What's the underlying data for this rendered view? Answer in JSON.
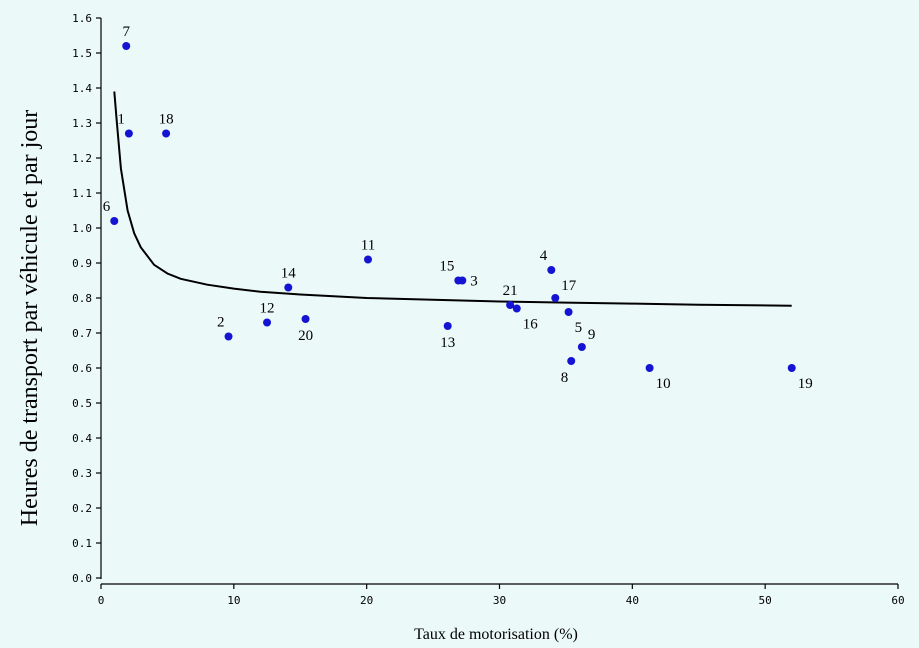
{
  "colors": {
    "background": "#ebfaf8",
    "point": "#1414d2",
    "curve": "#000000",
    "axis": "#000000"
  },
  "chart_data": {
    "type": "scatter",
    "title": "",
    "xlabel": "Taux de motorisation (%)",
    "ylabel": "Heures de transport par véhicule et par jour",
    "xlim": [
      0,
      60
    ],
    "ylim": [
      0,
      1.6
    ],
    "x_ticks": [
      0,
      10,
      20,
      30,
      40,
      50,
      60
    ],
    "x_tick_labels": [
      "0",
      "10",
      "20",
      "30",
      "40",
      "50",
      "60"
    ],
    "y_ticks": [
      0,
      0.1,
      0.2,
      0.3,
      0.4,
      0.5,
      0.6,
      0.7,
      0.8,
      0.9,
      1.0,
      1.1,
      1.2,
      1.3,
      1.4,
      1.5,
      1.6
    ],
    "y_tick_labels": [
      "0.0",
      "0.1",
      "0.2",
      "0.3",
      "0.4",
      "0.5",
      "0.6",
      "0.7",
      "0.8",
      "0.9",
      "1.0",
      "1.1",
      "1.2",
      "1.3",
      "1.4",
      "1.5",
      "1.6"
    ],
    "grid": false,
    "legend": "none",
    "points": [
      {
        "label": "1",
        "x": 2.1,
        "y": 1.27,
        "label_pos": "above-left"
      },
      {
        "label": "2",
        "x": 9.6,
        "y": 0.69,
        "label_pos": "above-left"
      },
      {
        "label": "3",
        "x": 27.2,
        "y": 0.85,
        "label_pos": "right"
      },
      {
        "label": "4",
        "x": 33.9,
        "y": 0.88,
        "label_pos": "above-left"
      },
      {
        "label": "5",
        "x": 35.2,
        "y": 0.76,
        "label_pos": "below-right"
      },
      {
        "label": "6",
        "x": 1.0,
        "y": 1.02,
        "label_pos": "above-left"
      },
      {
        "label": "7",
        "x": 1.9,
        "y": 1.52,
        "label_pos": "above"
      },
      {
        "label": "8",
        "x": 35.4,
        "y": 0.62,
        "label_pos": "below-left"
      },
      {
        "label": "9",
        "x": 36.2,
        "y": 0.66,
        "label_pos": "above-right"
      },
      {
        "label": "10",
        "x": 41.3,
        "y": 0.6,
        "label_pos": "below-right"
      },
      {
        "label": "11",
        "x": 20.1,
        "y": 0.91,
        "label_pos": "above"
      },
      {
        "label": "12",
        "x": 12.5,
        "y": 0.73,
        "label_pos": "above"
      },
      {
        "label": "13",
        "x": 26.1,
        "y": 0.72,
        "label_pos": "below"
      },
      {
        "label": "14",
        "x": 14.1,
        "y": 0.83,
        "label_pos": "above"
      },
      {
        "label": "15",
        "x": 26.9,
        "y": 0.85,
        "label_pos": "above-left"
      },
      {
        "label": "16",
        "x": 31.3,
        "y": 0.77,
        "label_pos": "below-right"
      },
      {
        "label": "17",
        "x": 34.2,
        "y": 0.8,
        "label_pos": "above-right"
      },
      {
        "label": "18",
        "x": 4.9,
        "y": 1.27,
        "label_pos": "above"
      },
      {
        "label": "19",
        "x": 52.0,
        "y": 0.6,
        "label_pos": "below-right"
      },
      {
        "label": "20",
        "x": 15.4,
        "y": 0.74,
        "label_pos": "below"
      },
      {
        "label": "21",
        "x": 30.8,
        "y": 0.78,
        "label_pos": "above"
      }
    ],
    "fit_curve": {
      "x": [
        1.0,
        1.2,
        1.5,
        2,
        2.5,
        3,
        4,
        5,
        6,
        8,
        10,
        12,
        15,
        20,
        25,
        30,
        35,
        40,
        45,
        52
      ],
      "y": [
        1.39,
        1.3,
        1.17,
        1.05,
        0.985,
        0.945,
        0.895,
        0.87,
        0.855,
        0.838,
        0.827,
        0.818,
        0.81,
        0.8,
        0.795,
        0.79,
        0.787,
        0.784,
        0.781,
        0.778
      ]
    }
  }
}
